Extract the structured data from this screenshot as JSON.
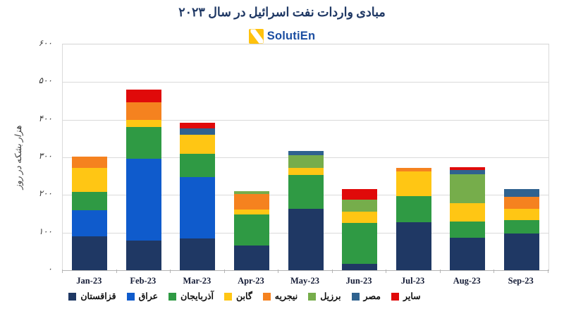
{
  "header": {
    "title": "مبادی واردات نفت اسرائیل در سال ۲۰۲۳",
    "logo_text": "SolutiEn",
    "logo_icon": "solutien-yellow-slash-icon",
    "logo_color": "#1c4ea1",
    "logo_icon_color": "#ffc20e"
  },
  "chart_data": {
    "type": "bar",
    "stacked": true,
    "title": "مبادی واردات نفت اسرائیل در سال ۲۰۲۳",
    "ylabel": "هزار بشکه در روز",
    "ylim": [
      0,
      600
    ],
    "grid": true,
    "legend_position": "bottom",
    "yticks": [
      {
        "value": 0,
        "label": "۰"
      },
      {
        "value": 100,
        "label": "۱۰۰"
      },
      {
        "value": 200,
        "label": "۲۰۰"
      },
      {
        "value": 300,
        "label": "۳۰۰"
      },
      {
        "value": 400,
        "label": "۴۰۰"
      },
      {
        "value": 500,
        "label": "۵۰۰"
      },
      {
        "value": 600,
        "label": "۶۰۰"
      }
    ],
    "categories": [
      "Jan-23",
      "Feb-23",
      "Mar-23",
      "Apr-23",
      "May-23",
      "Jun-23",
      "Jul-23",
      "Aug-23",
      "Sep-23"
    ],
    "series": [
      {
        "name": "قزاقستان",
        "color": "#1f3864",
        "values": [
          90,
          79,
          85,
          65,
          163,
          17,
          128,
          86,
          97
        ]
      },
      {
        "name": "عراق",
        "color": "#0f5bcc",
        "values": [
          70,
          218,
          163,
          0,
          0,
          0,
          0,
          0,
          0
        ]
      },
      {
        "name": "آذربایجان",
        "color": "#2f9a44",
        "values": [
          49,
          84,
          61,
          83,
          90,
          109,
          68,
          44,
          36
        ]
      },
      {
        "name": "گابن",
        "color": "#ffc614",
        "values": [
          63,
          18,
          51,
          13,
          19,
          29,
          66,
          48,
          31
        ]
      },
      {
        "name": "نیجریه",
        "color": "#f5821f",
        "values": [
          29,
          48,
          0,
          42,
          0,
          0,
          9,
          0,
          31
        ]
      },
      {
        "name": "برزیل",
        "color": "#76ad4b",
        "values": [
          0,
          0,
          0,
          7,
          34,
          33,
          0,
          77,
          0
        ]
      },
      {
        "name": "مصر",
        "color": "#2f628f",
        "values": [
          0,
          0,
          16,
          0,
          11,
          0,
          0,
          12,
          20
        ]
      },
      {
        "name": "سایر",
        "color": "#e00a0a",
        "values": [
          0,
          33,
          16,
          0,
          0,
          28,
          0,
          7,
          0
        ]
      }
    ]
  }
}
